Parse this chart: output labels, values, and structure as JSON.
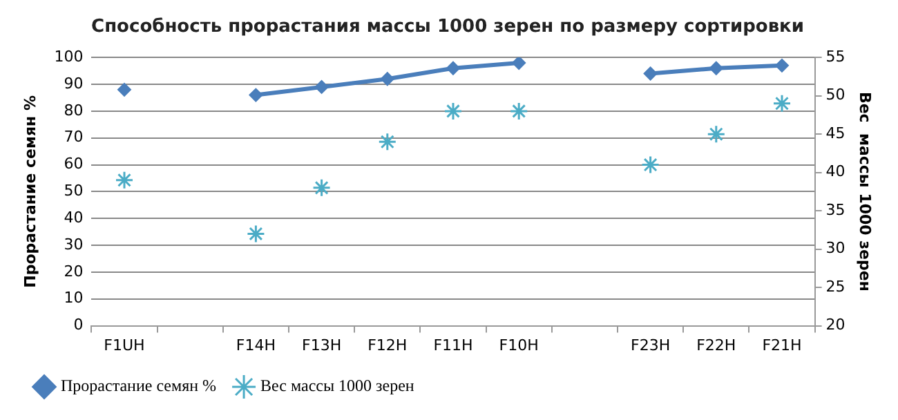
{
  "chart_data": {
    "type": "line",
    "title": "Способность прорастания массы 1000 зерен по размеру сортировки",
    "ylabel": "Прорастание семян %",
    "y2label": "Вес  массы 1000 зерен",
    "categories": [
      "F1UH",
      null,
      "F14H",
      "F13H",
      "F12H",
      "F11H",
      "F10H",
      null,
      "F23H",
      "F22H",
      "F21H"
    ],
    "series": [
      {
        "name": "Прорастание семян %",
        "color": "#4a7ebb",
        "marker": "diamond",
        "line_style": "solid",
        "values": [
          88,
          null,
          86,
          89,
          92,
          96,
          98,
          null,
          94,
          96,
          97
        ]
      },
      {
        "name": "Вес массы 1000 зерен",
        "type": "scatter",
        "axis": "y2",
        "color": "#4bacc6",
        "marker": "cross",
        "values": [
          39,
          null,
          32,
          38,
          44,
          48,
          48,
          null,
          41,
          45,
          49
        ]
      }
    ],
    "ylim": [
      0,
      100
    ],
    "yticks": [
      0,
      10,
      20,
      30,
      40,
      50,
      60,
      70,
      80,
      90,
      100
    ],
    "y2lim": [
      20,
      55
    ],
    "y2ticks": [
      20,
      25,
      30,
      35,
      40,
      45,
      50,
      55
    ],
    "grid": "y",
    "legend": "bottom"
  }
}
